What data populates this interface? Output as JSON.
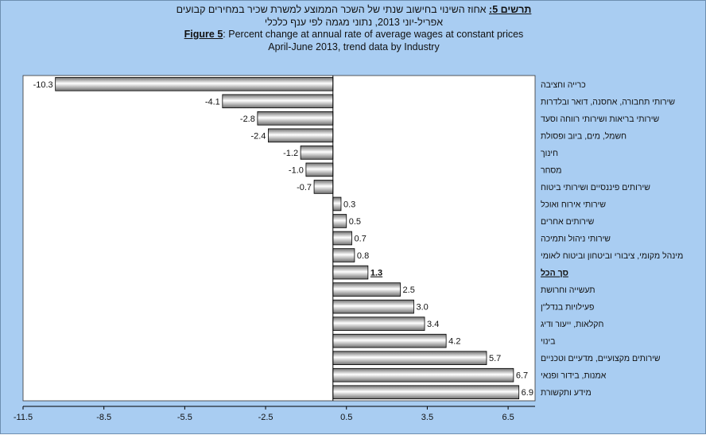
{
  "titles": {
    "he_label": "תרשים 5:",
    "he_line1": " אחוז השינוי בחישוב שנתי של השכר הממוצע למשרת שכיר במחירים קבועים",
    "he_line2": "אפריל-יוני 2013, נתוני מגמה לפי ענף כלכלי",
    "en_label": "Figure 5",
    "en_line1": ": Percent change at annual rate of average wages at constant prices",
    "en_line2": "April-June 2013, trend data by Industry"
  },
  "chart_data": {
    "type": "bar",
    "orientation": "horizontal",
    "categories": [
      "כרייה וחציבה",
      "שירותי תחבורה, אחסנה, דואר ובלדרות",
      "שירותי בריאות ושירותי רווחה וסעד",
      "חשמל, מים, ביוב ופסולת",
      "חינוך",
      "מסחר",
      "שירותים פיננסיים ושירותי ביטוח",
      "שירותי אירוח ואוכל",
      "שירותים אחרים",
      "שירותי ניהול ותמיכה",
      "מינהל מקומי, ציבורי וביטחון וביטוח לאומי",
      "סך הכל",
      "תעשייה וחרושת",
      "פעילויות בנדל\"ן",
      "חקלאות, ייעור ודיג",
      "בינוי",
      "שירותים מקצועיים, מדעיים וטכניים",
      "אמנות, בידור ופנאי",
      "מידע ותקשורת"
    ],
    "values": [
      -10.3,
      -4.1,
      -2.8,
      -2.4,
      -1.2,
      -1.0,
      -0.7,
      0.3,
      0.5,
      0.7,
      0.8,
      1.3,
      2.5,
      3.0,
      3.4,
      4.2,
      5.7,
      6.7,
      6.9
    ],
    "value_labels": [
      "-10.3",
      "-4.1",
      "-2.8",
      "-2.4",
      "-1.2",
      "-1.0",
      "-0.7",
      "0.3",
      "0.5",
      "0.7",
      "0.8",
      "1.3",
      "2.5",
      "3.0",
      "3.4",
      "4.2",
      "5.7",
      "6.7",
      "6.9"
    ],
    "highlight_category": "סך הכל",
    "xlim": [
      -11.5,
      7.5
    ],
    "xticks": [
      -11.5,
      -8.5,
      -5.5,
      -2.5,
      0.5,
      3.5,
      6.5
    ],
    "xtick_labels": [
      "-11.5",
      "-8.5",
      "-5.5",
      "-2.5",
      "0.5",
      "3.5",
      "6.5"
    ],
    "grid": false,
    "colors": {
      "background": "#a9cdf2",
      "plot_area": "#ffffff",
      "bar_edge": "#000000",
      "bar_fill_dark": "#6f6f6f",
      "bar_fill_light": "#ffffff"
    }
  }
}
